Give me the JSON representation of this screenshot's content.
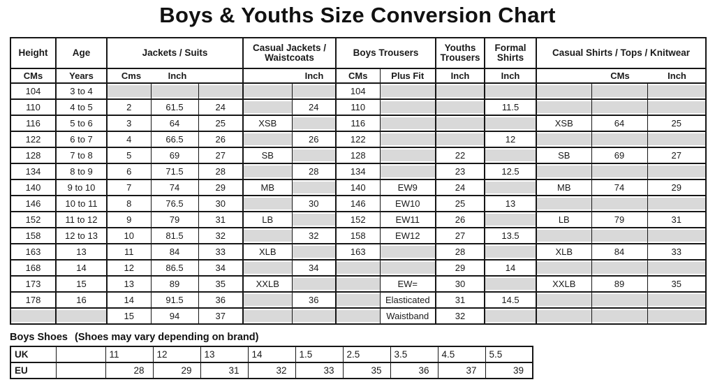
{
  "title": "Boys & Youths Size Conversion Chart",
  "main_table": {
    "groups": {
      "height": "Height",
      "age": "Age",
      "jackets": "Jackets / Suits",
      "casual_jackets": "Casual Jackets / Waistcoats",
      "boys_trousers": "Boys Trousers",
      "youths_trousers": "Youths Trousers",
      "formal_shirts": "Formal Shirts",
      "casual_shirts": "Casual Shirts / Tops / Knitwear"
    },
    "subheaders": {
      "height_cms": "CMs",
      "age_years": "Years",
      "jackets_cms": "Cms",
      "jackets_inch": "Inch",
      "casual_jackets_inch": "Inch",
      "boys_cms": "CMs",
      "boys_plus_fit": "Plus Fit",
      "youths_inch": "Inch",
      "formal_inch": "Inch",
      "casual_shirts_cms": "CMs",
      "casual_shirts_inch": "Inch"
    },
    "rows": [
      [
        "104",
        "3 to 4",
        null,
        null,
        null,
        null,
        null,
        "104",
        null,
        null,
        null,
        null,
        null,
        null
      ],
      [
        "110",
        "4 to 5",
        "2",
        "61.5",
        "24",
        null,
        "24",
        "110",
        null,
        null,
        "11.5",
        null,
        null,
        null
      ],
      [
        "116",
        "5 to 6",
        "3",
        "64",
        "25",
        "XSB",
        null,
        "116",
        null,
        null,
        null,
        "XSB",
        "64",
        "25"
      ],
      [
        "122",
        "6 to 7",
        "4",
        "66.5",
        "26",
        null,
        "26",
        "122",
        null,
        null,
        "12",
        null,
        null,
        null
      ],
      [
        "128",
        "7 to 8",
        "5",
        "69",
        "27",
        "SB",
        null,
        "128",
        null,
        "22",
        null,
        "SB",
        "69",
        "27"
      ],
      [
        "134",
        "8 to 9",
        "6",
        "71.5",
        "28",
        null,
        "28",
        "134",
        null,
        "23",
        "12.5",
        null,
        null,
        null
      ],
      [
        "140",
        "9 to 10",
        "7",
        "74",
        "29",
        "MB",
        null,
        "140",
        "EW9",
        "24",
        null,
        "MB",
        "74",
        "29"
      ],
      [
        "146",
        "10 to 11",
        "8",
        "76.5",
        "30",
        null,
        "30",
        "146",
        "EW10",
        "25",
        "13",
        null,
        null,
        null
      ],
      [
        "152",
        "11 to 12",
        "9",
        "79",
        "31",
        "LB",
        null,
        "152",
        "EW11",
        "26",
        null,
        "LB",
        "79",
        "31"
      ],
      [
        "158",
        "12 to 13",
        "10",
        "81.5",
        "32",
        null,
        "32",
        "158",
        "EW12",
        "27",
        "13.5",
        null,
        null,
        null
      ],
      [
        "163",
        "13",
        "11",
        "84",
        "33",
        "XLB",
        null,
        "163",
        null,
        "28",
        null,
        "XLB",
        "84",
        "33"
      ],
      [
        "168",
        "14",
        "12",
        "86.5",
        "34",
        null,
        "34",
        null,
        null,
        "29",
        "14",
        null,
        null,
        null
      ],
      [
        "173",
        "15",
        "13",
        "89",
        "35",
        "XXLB",
        null,
        null,
        "EW=",
        "30",
        null,
        "XXLB",
        "89",
        "35"
      ],
      [
        "178",
        "16",
        "14",
        "91.5",
        "36",
        null,
        "36",
        null,
        "Elasticated",
        "31",
        "14.5",
        null,
        null,
        null
      ],
      [
        null,
        null,
        "15",
        "94",
        "37",
        null,
        null,
        null,
        "Waistband",
        "32",
        null,
        null,
        null,
        null
      ]
    ]
  },
  "shoes": {
    "heading": "Boys Shoes",
    "note": "(Shoes may vary depending on brand)",
    "uk_label": "UK",
    "eu_label": "EU",
    "uk_sizes": [
      "11",
      "12",
      "13",
      "14",
      "1.5",
      "2.5",
      "3.5",
      "4.5",
      "5.5"
    ],
    "eu_sizes": [
      "28",
      "29",
      "31",
      "32",
      "33",
      "35",
      "36",
      "37",
      "39"
    ]
  }
}
